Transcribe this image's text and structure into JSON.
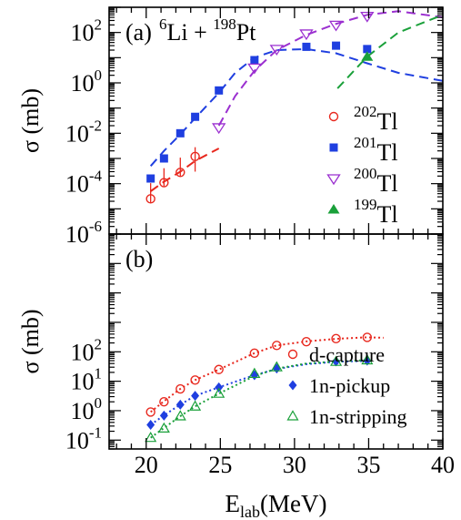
{
  "chart_data": [
    {
      "panel_label": "(a)",
      "reaction": {
        "projectile_mass": "6",
        "projectile": "Li",
        "joiner": "+",
        "target_mass": "198",
        "target": "Pt"
      },
      "type": "scatter",
      "xlim": [
        17.5,
        40
      ],
      "ylim": [
        1e-06,
        1000
      ],
      "yscale": "log",
      "ylabel_symbol": "σ",
      "ylabel_unit": "(mb)",
      "x_ticks": [
        20,
        25,
        30,
        35,
        40
      ],
      "y_ticks": [
        {
          "value": 1e-06,
          "base": "10",
          "exp": "-6"
        },
        {
          "value": 0.0001,
          "base": "10",
          "exp": "-4"
        },
        {
          "value": 0.01,
          "base": "10",
          "exp": "-2"
        },
        {
          "value": 1,
          "base": "10",
          "exp": "0"
        },
        {
          "value": 100,
          "base": "10",
          "exp": "2"
        }
      ],
      "legend_position": "right",
      "series": [
        {
          "name": "202Tl",
          "mass": "202",
          "element": "Tl",
          "marker": "open-circle",
          "color": "#e8281e",
          "x": [
            20.3,
            21.2,
            22.3,
            23.3
          ],
          "y": [
            2.5e-05,
            0.00011,
            0.00028,
            0.0012
          ],
          "err_low": [
            8e-06,
            3e-05,
            8e-05,
            0.0009
          ],
          "err_high": [
            8e-05,
            0.0003,
            0.0008,
            0.0016
          ]
        },
        {
          "name": "201Tl",
          "mass": "201",
          "element": "Tl",
          "marker": "filled-square",
          "color": "#1f3fe0",
          "x": [
            20.3,
            21.2,
            22.3,
            23.3,
            24.9,
            27.3,
            30.8,
            32.8,
            34.9
          ],
          "y": [
            0.00016,
            0.001,
            0.01,
            0.045,
            0.5,
            8,
            27,
            30,
            22
          ]
        },
        {
          "name": "200Tl",
          "mass": "200",
          "element": "Tl",
          "marker": "open-triangle-down",
          "color": "#9b30d0",
          "x": [
            24.9,
            27.3,
            28.8,
            30.8,
            32.8,
            34.9
          ],
          "y": [
            0.017,
            4,
            22,
            90,
            200,
            450
          ]
        },
        {
          "name": "199Tl",
          "mass": "199",
          "element": "Tl",
          "marker": "filled-triangle-up",
          "color": "#1aa03a",
          "x": [
            34.9
          ],
          "y": [
            11
          ]
        }
      ],
      "curves": [
        {
          "color": "#e8281e",
          "x": [
            20.3,
            21.2,
            22.3,
            23.3,
            24.9
          ],
          "y": [
            5e-05,
            0.00012,
            0.0003,
            0.0008,
            0.0025
          ]
        },
        {
          "color": "#1f3fe0",
          "x": [
            20.3,
            21.2,
            22.3,
            23.3,
            24.9,
            26,
            27.3,
            28.8,
            30.8,
            32.8,
            34.9,
            37,
            40
          ],
          "y": [
            0.0005,
            0.002,
            0.009,
            0.04,
            0.4,
            2.5,
            10,
            20,
            22,
            15,
            6,
            2.5,
            1.2
          ]
        },
        {
          "color": "#9b30d0",
          "x": [
            24.9,
            26,
            27.3,
            28.8,
            30.8,
            32.8,
            34.9,
            37,
            40
          ],
          "y": [
            0.02,
            0.3,
            3,
            20,
            80,
            220,
            500,
            700,
            400
          ]
        },
        {
          "color": "#1aa03a",
          "x": [
            32.9,
            34.9,
            37,
            40
          ],
          "y": [
            0.6,
            11,
            100,
            500
          ]
        }
      ]
    },
    {
      "panel_label": "(b)",
      "type": "scatter",
      "xlim": [
        17.5,
        40
      ],
      "ylim": [
        0.05,
        1000000
      ],
      "yscale": "log",
      "ylabel_symbol": "σ",
      "ylabel_unit": "(mb)",
      "xlabel_main": "E",
      "xlabel_sub": "lab",
      "xlabel_unit": "(MeV)",
      "x_ticks": [
        20,
        25,
        30,
        35,
        40
      ],
      "y_ticks": [
        {
          "value": 0.1,
          "base": "10",
          "exp": "-1"
        },
        {
          "value": 1,
          "base": "10",
          "exp": "0"
        },
        {
          "value": 10,
          "base": "10",
          "exp": "1"
        },
        {
          "value": 100,
          "base": "10",
          "exp": "2"
        }
      ],
      "legend_position": "bottom-right",
      "series": [
        {
          "name": "d-capture",
          "marker": "open-circle",
          "color": "#e8281e",
          "x": [
            20.3,
            21.2,
            22.3,
            23.3,
            24.9,
            27.3,
            28.8,
            30.8,
            32.8,
            34.9
          ],
          "y": [
            0.9,
            2.0,
            5.5,
            11,
            25,
            90,
            165,
            220,
            280,
            310
          ]
        },
        {
          "name": "1n-pickup",
          "marker": "filled-diamond",
          "color": "#1f3fe0",
          "x": [
            20.3,
            21.2,
            22.3,
            23.3,
            24.9,
            27.3,
            28.8,
            32.8,
            34.9
          ],
          "y": [
            0.33,
            0.68,
            1.6,
            3.2,
            6.2,
            16,
            27,
            47,
            50
          ]
        },
        {
          "name": "1n-stripping",
          "marker": "open-triangle-up",
          "color": "#1aa03a",
          "x": [
            20.3,
            21.2,
            22.3,
            23.3,
            24.9,
            27.3,
            28.8,
            32.8,
            34.9
          ],
          "y": [
            0.12,
            0.25,
            0.65,
            1.4,
            3.8,
            18,
            30,
            46,
            52
          ]
        }
      ],
      "curves": [
        {
          "color": "#e8281e",
          "x": [
            20.3,
            21.2,
            22.3,
            23.3,
            24.9,
            27.3,
            28.8,
            30.8,
            32.8,
            34.9,
            36
          ],
          "y": [
            0.9,
            2.1,
            5.5,
            11,
            25,
            90,
            165,
            225,
            275,
            310,
            300
          ]
        },
        {
          "color": "#1f3fe0",
          "x": [
            20.3,
            21.2,
            22.3,
            23.3,
            24.9,
            27.3,
            28.8,
            30.8,
            32.8,
            34.9
          ],
          "y": [
            0.33,
            0.7,
            1.6,
            3.2,
            6.2,
            16,
            26,
            38,
            46,
            49
          ]
        },
        {
          "color": "#1aa03a",
          "x": [
            20.3,
            21.2,
            22.3,
            23.3,
            24.9,
            27.3,
            28.8,
            30.8,
            32.8,
            34.9
          ],
          "y": [
            0.12,
            0.26,
            0.65,
            1.4,
            3.8,
            15,
            27,
            40,
            47,
            52
          ]
        }
      ]
    }
  ]
}
